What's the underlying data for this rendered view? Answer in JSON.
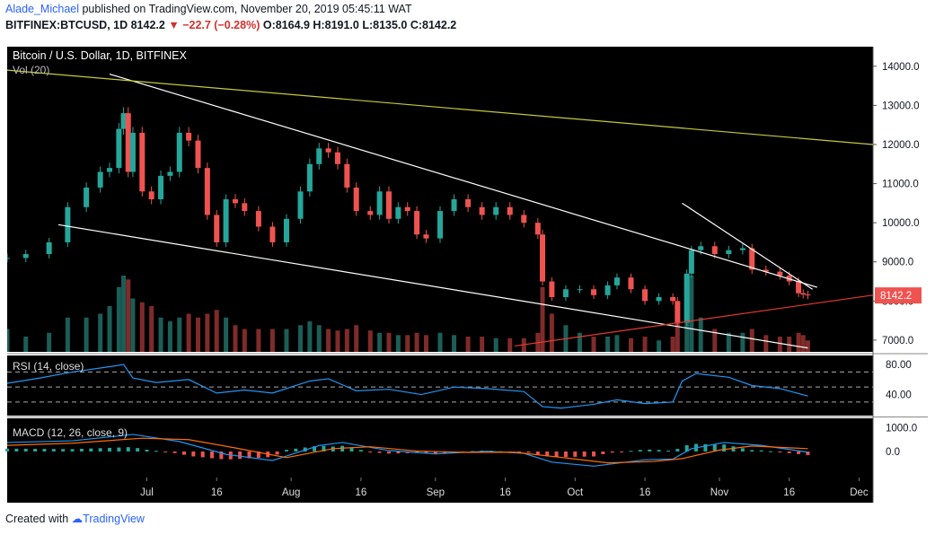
{
  "header": {
    "author": "Alade_Michael",
    "published_text": " published on TradingView.com, November 20, 2019 05:45:11 WAT"
  },
  "quote": {
    "symbol": "BITFINEX:BTCUSD, 1D",
    "last": "8142.2",
    "change": "−22.7 (−0.28%)",
    "ohlc": "O:8164.9 H:8191.0 L:8135.0 C:8142.2"
  },
  "footer": {
    "created_with": "Created with",
    "brand": "TradingView"
  },
  "colors": {
    "up": "#26a69a",
    "down": "#ef5350",
    "rsi": "#2196f3",
    "macd": "#2196f3",
    "signal": "#ff6d00",
    "pane_bg": "#000000",
    "trendline": "#ffffff",
    "yellow_line": "#c9c93a",
    "red_line": "#e53935",
    "axis_text": "#131722"
  },
  "chart_data": {
    "type": "candlestick",
    "title": "Bitcoin / U.S. Dollar, 1D, BITFINEX",
    "volume_label": "Vol (20)",
    "last_price_label": "8142.2",
    "last_price": 8142.2,
    "price_ylim": [
      6700,
      14500
    ],
    "price_ticks": [
      7000,
      8000,
      9000,
      10000,
      11000,
      12000,
      13000,
      14000
    ],
    "price_tick_labels": [
      "7000.0",
      "8000.0",
      "9000.0",
      "10000.0",
      "11000.0",
      "12000.0",
      "13000.0",
      "14000.0"
    ],
    "x_ticks": [
      {
        "date": "2019-07-01",
        "label": "Jul"
      },
      {
        "date": "2019-07-16",
        "label": "16"
      },
      {
        "date": "2019-08-01",
        "label": "Aug"
      },
      {
        "date": "2019-08-16",
        "label": "16"
      },
      {
        "date": "2019-09-01",
        "label": "Sep"
      },
      {
        "date": "2019-09-16",
        "label": "16"
      },
      {
        "date": "2019-10-01",
        "label": "Oct"
      },
      {
        "date": "2019-10-16",
        "label": "16"
      },
      {
        "date": "2019-11-01",
        "label": "Nov"
      },
      {
        "date": "2019-11-16",
        "label": "16"
      },
      {
        "date": "2019-12-01",
        "label": "Dec"
      }
    ],
    "x_range": [
      "2019-06-01",
      "2019-12-04"
    ],
    "candles": [
      {
        "date": "2019-06-01",
        "c": 9100,
        "v": 0.3
      },
      {
        "date": "2019-06-05",
        "c": 9200,
        "v": 0.2
      },
      {
        "date": "2019-06-10",
        "c": 9500,
        "v": 0.25
      },
      {
        "date": "2019-06-14",
        "c": 10400,
        "v": 0.45
      },
      {
        "date": "2019-06-18",
        "c": 10900,
        "v": 0.45
      },
      {
        "date": "2019-06-21",
        "c": 11300,
        "v": 0.5
      },
      {
        "date": "2019-06-23",
        "c": 11400,
        "v": 0.6
      },
      {
        "date": "2019-06-25",
        "c": 12400,
        "v": 0.85
      },
      {
        "date": "2019-06-26",
        "c": 12800,
        "v": 1.0
      },
      {
        "date": "2019-06-27",
        "c": 11300,
        "v": 0.95
      },
      {
        "date": "2019-06-28",
        "c": 12300,
        "v": 0.7
      },
      {
        "date": "2019-06-30",
        "c": 10800,
        "v": 0.65
      },
      {
        "date": "2019-07-02",
        "c": 10600,
        "v": 0.6
      },
      {
        "date": "2019-07-04",
        "c": 11200,
        "v": 0.45
      },
      {
        "date": "2019-07-06",
        "c": 11300,
        "v": 0.4
      },
      {
        "date": "2019-07-08",
        "c": 12300,
        "v": 0.45
      },
      {
        "date": "2019-07-10",
        "c": 12100,
        "v": 0.5
      },
      {
        "date": "2019-07-12",
        "c": 11400,
        "v": 0.45
      },
      {
        "date": "2019-07-14",
        "c": 10200,
        "v": 0.5
      },
      {
        "date": "2019-07-16",
        "c": 9500,
        "v": 0.55
      },
      {
        "date": "2019-07-18",
        "c": 10600,
        "v": 0.45
      },
      {
        "date": "2019-07-20",
        "c": 10500,
        "v": 0.35
      },
      {
        "date": "2019-07-22",
        "c": 10300,
        "v": 0.3
      },
      {
        "date": "2019-07-25",
        "c": 9900,
        "v": 0.3
      },
      {
        "date": "2019-07-28",
        "c": 9500,
        "v": 0.3
      },
      {
        "date": "2019-07-31",
        "c": 10100,
        "v": 0.3
      },
      {
        "date": "2019-08-03",
        "c": 10800,
        "v": 0.35
      },
      {
        "date": "2019-08-05",
        "c": 11500,
        "v": 0.4
      },
      {
        "date": "2019-08-07",
        "c": 11900,
        "v": 0.35
      },
      {
        "date": "2019-08-09",
        "c": 11800,
        "v": 0.3
      },
      {
        "date": "2019-08-11",
        "c": 11500,
        "v": 0.28
      },
      {
        "date": "2019-08-13",
        "c": 10900,
        "v": 0.3
      },
      {
        "date": "2019-08-15",
        "c": 10300,
        "v": 0.35
      },
      {
        "date": "2019-08-18",
        "c": 10200,
        "v": 0.28
      },
      {
        "date": "2019-08-20",
        "c": 10800,
        "v": 0.25
      },
      {
        "date": "2019-08-22",
        "c": 10100,
        "v": 0.25
      },
      {
        "date": "2019-08-24",
        "c": 10400,
        "v": 0.22
      },
      {
        "date": "2019-08-26",
        "c": 10300,
        "v": 0.22
      },
      {
        "date": "2019-08-28",
        "c": 9700,
        "v": 0.25
      },
      {
        "date": "2019-08-30",
        "c": 9600,
        "v": 0.22
      },
      {
        "date": "2019-09-02",
        "c": 10300,
        "v": 0.25
      },
      {
        "date": "2019-09-05",
        "c": 10600,
        "v": 0.22
      },
      {
        "date": "2019-09-08",
        "c": 10400,
        "v": 0.2
      },
      {
        "date": "2019-09-11",
        "c": 10200,
        "v": 0.2
      },
      {
        "date": "2019-09-14",
        "c": 10400,
        "v": 0.18
      },
      {
        "date": "2019-09-17",
        "c": 10200,
        "v": 0.18
      },
      {
        "date": "2019-09-20",
        "c": 10000,
        "v": 0.18
      },
      {
        "date": "2019-09-23",
        "c": 9700,
        "v": 0.25
      },
      {
        "date": "2019-09-24",
        "c": 8500,
        "v": 0.85
      },
      {
        "date": "2019-09-26",
        "c": 8100,
        "v": 0.5
      },
      {
        "date": "2019-09-29",
        "c": 8300,
        "v": 0.35
      },
      {
        "date": "2019-10-02",
        "c": 8300,
        "v": 0.25
      },
      {
        "date": "2019-10-05",
        "c": 8150,
        "v": 0.2
      },
      {
        "date": "2019-10-08",
        "c": 8400,
        "v": 0.2
      },
      {
        "date": "2019-10-10",
        "c": 8600,
        "v": 0.22
      },
      {
        "date": "2019-10-13",
        "c": 8300,
        "v": 0.18
      },
      {
        "date": "2019-10-16",
        "c": 8000,
        "v": 0.2
      },
      {
        "date": "2019-10-19",
        "c": 8100,
        "v": 0.15
      },
      {
        "date": "2019-10-22",
        "c": 8000,
        "v": 0.2
      },
      {
        "date": "2019-10-23",
        "c": 7450,
        "v": 0.45
      },
      {
        "date": "2019-10-25",
        "c": 8700,
        "v": 0.85
      },
      {
        "date": "2019-10-26",
        "c": 9300,
        "v": 1.0
      },
      {
        "date": "2019-10-28",
        "c": 9400,
        "v": 0.45
      },
      {
        "date": "2019-10-31",
        "c": 9200,
        "v": 0.3
      },
      {
        "date": "2019-11-03",
        "c": 9300,
        "v": 0.25
      },
      {
        "date": "2019-11-06",
        "c": 9350,
        "v": 0.25
      },
      {
        "date": "2019-11-08",
        "c": 8800,
        "v": 0.3
      },
      {
        "date": "2019-11-11",
        "c": 8750,
        "v": 0.22
      },
      {
        "date": "2019-11-14",
        "c": 8650,
        "v": 0.2
      },
      {
        "date": "2019-11-16",
        "c": 8500,
        "v": 0.2
      },
      {
        "date": "2019-11-18",
        "c": 8200,
        "v": 0.25
      },
      {
        "date": "2019-11-19",
        "c": 8164.9,
        "v": 0.22
      },
      {
        "date": "2019-11-20",
        "c": 8142.2,
        "v": 0.15
      }
    ],
    "lines": [
      {
        "name": "",
        "color": "#ffffff",
        "points": [
          [
            "2019-06-23",
            13800
          ],
          [
            "2019-11-22",
            8350
          ]
        ]
      },
      {
        "name": "",
        "color": "#ffffff",
        "points": [
          [
            "2019-06-12",
            9950
          ],
          [
            "2019-11-20",
            6800
          ]
        ]
      },
      {
        "name": "",
        "color": "#ffffff",
        "points": [
          [
            "2019-10-24",
            10500
          ],
          [
            "2019-11-21",
            8300
          ]
        ]
      },
      {
        "name": "",
        "color": "#c9c93a",
        "points": [
          [
            "2019-06-01",
            13900
          ],
          [
            "2019-12-04",
            12000
          ]
        ]
      },
      {
        "name": "",
        "color": "#e53935",
        "points": [
          [
            "2019-09-18",
            6850
          ],
          [
            "2019-12-04",
            8150
          ]
        ]
      }
    ],
    "rsi": {
      "label": "RSI (14, close)",
      "ylim": [
        12,
        92
      ],
      "ticks": [
        40,
        80
      ],
      "tick_labels": [
        "40.00",
        "80.00"
      ],
      "bands": [
        30,
        50,
        70
      ],
      "values": [
        [
          "2019-06-01",
          55
        ],
        [
          "2019-06-08",
          62
        ],
        [
          "2019-06-15",
          70
        ],
        [
          "2019-06-24",
          78
        ],
        [
          "2019-06-26",
          80
        ],
        [
          "2019-06-28",
          62
        ],
        [
          "2019-07-03",
          56
        ],
        [
          "2019-07-10",
          60
        ],
        [
          "2019-07-16",
          42
        ],
        [
          "2019-07-22",
          46
        ],
        [
          "2019-07-28",
          42
        ],
        [
          "2019-08-05",
          58
        ],
        [
          "2019-08-09",
          61
        ],
        [
          "2019-08-15",
          45
        ],
        [
          "2019-08-22",
          47
        ],
        [
          "2019-08-29",
          40
        ],
        [
          "2019-09-05",
          50
        ],
        [
          "2019-09-12",
          48
        ],
        [
          "2019-09-20",
          44
        ],
        [
          "2019-09-24",
          24
        ],
        [
          "2019-09-28",
          22
        ],
        [
          "2019-10-05",
          27
        ],
        [
          "2019-10-10",
          33
        ],
        [
          "2019-10-16",
          28
        ],
        [
          "2019-10-22",
          30
        ],
        [
          "2019-10-24",
          58
        ],
        [
          "2019-10-27",
          68
        ],
        [
          "2019-11-03",
          63
        ],
        [
          "2019-11-08",
          52
        ],
        [
          "2019-11-14",
          48
        ],
        [
          "2019-11-20",
          38
        ]
      ]
    },
    "macd": {
      "label": "MACD (12, 26, close, 9)",
      "ylim": [
        -1100,
        1400
      ],
      "ticks": [
        0,
        1000
      ],
      "tick_labels": [
        "0.0",
        "1000.0"
      ],
      "macd_line": [
        [
          "2019-06-01",
          380
        ],
        [
          "2019-06-15",
          450
        ],
        [
          "2019-06-28",
          720
        ],
        [
          "2019-07-08",
          420
        ],
        [
          "2019-07-18",
          -120
        ],
        [
          "2019-07-28",
          -380
        ],
        [
          "2019-08-07",
          250
        ],
        [
          "2019-08-12",
          380
        ],
        [
          "2019-08-22",
          40
        ],
        [
          "2019-09-01",
          -100
        ],
        [
          "2019-09-12",
          10
        ],
        [
          "2019-09-20",
          -80
        ],
        [
          "2019-09-26",
          -450
        ],
        [
          "2019-10-05",
          -620
        ],
        [
          "2019-10-16",
          -350
        ],
        [
          "2019-10-22",
          -320
        ],
        [
          "2019-10-26",
          120
        ],
        [
          "2019-11-02",
          380
        ],
        [
          "2019-11-10",
          260
        ],
        [
          "2019-11-20",
          -30
        ]
      ],
      "signal_line": [
        [
          "2019-06-01",
          260
        ],
        [
          "2019-06-15",
          350
        ],
        [
          "2019-06-30",
          560
        ],
        [
          "2019-07-10",
          500
        ],
        [
          "2019-07-20",
          150
        ],
        [
          "2019-07-31",
          -260
        ],
        [
          "2019-08-10",
          120
        ],
        [
          "2019-08-18",
          200
        ],
        [
          "2019-08-28",
          20
        ],
        [
          "2019-09-08",
          -40
        ],
        [
          "2019-09-18",
          -30
        ],
        [
          "2019-09-28",
          -250
        ],
        [
          "2019-10-08",
          -480
        ],
        [
          "2019-10-18",
          -420
        ],
        [
          "2019-10-24",
          -300
        ],
        [
          "2019-11-01",
          60
        ],
        [
          "2019-11-08",
          230
        ],
        [
          "2019-11-20",
          120
        ]
      ]
    }
  }
}
